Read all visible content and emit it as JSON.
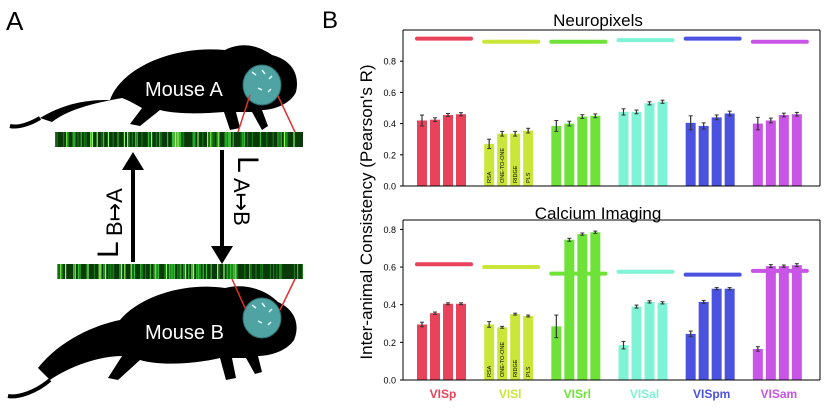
{
  "panel_a": {
    "panel_letter": "A",
    "mouse_top_label": "Mouse A",
    "mouse_bottom_label": "Mouse B",
    "transform_left": "L",
    "transform_left_sub": "B↦A",
    "transform_right": "L",
    "transform_right_sub": "A↦B"
  },
  "panel_b": {
    "panel_letter": "B",
    "ylabel": "Inter-animal Consistency (Pearson's R)",
    "method_labels": [
      "RSA",
      "ONE-TO-ONE",
      "RIDGE",
      "PLS"
    ]
  },
  "colors": {
    "VISp": "#e8435a",
    "VISl": "#cbe63a",
    "VISrl": "#6fe23a",
    "VISal": "#7ff3d6",
    "VISpm": "#4b52e0",
    "VISam": "#c855e6",
    "mouse": "#000000",
    "head_cap": "#4fa3a3"
  },
  "chart_data": [
    {
      "type": "bar",
      "title": "Neuropixels",
      "ylim": [
        0,
        1.0
      ],
      "yticks": [
        "0.0",
        "0.2",
        "0.4",
        "0.6",
        "0.8"
      ],
      "ytick_values": [
        0,
        0.2,
        0.4,
        0.6,
        0.8
      ],
      "categories": [
        "VISp",
        "VISl",
        "VISrl",
        "VISal",
        "VISpm",
        "VISam"
      ],
      "methods": [
        "RSA",
        "ONE-TO-ONE",
        "RIDGE",
        "PLS"
      ],
      "values": [
        [
          0.42,
          0.425,
          0.455,
          0.46
        ],
        [
          0.27,
          0.335,
          0.335,
          0.355
        ],
        [
          0.385,
          0.4,
          0.445,
          0.45
        ],
        [
          0.475,
          0.475,
          0.53,
          0.54
        ],
        [
          0.405,
          0.385,
          0.44,
          0.465
        ],
        [
          0.4,
          0.42,
          0.455,
          0.46
        ]
      ],
      "errors": [
        [
          0.035,
          0.012,
          0.01,
          0.01
        ],
        [
          0.03,
          0.015,
          0.015,
          0.015
        ],
        [
          0.035,
          0.015,
          0.012,
          0.012
        ],
        [
          0.02,
          0.012,
          0.01,
          0.01
        ],
        [
          0.045,
          0.02,
          0.015,
          0.015
        ],
        [
          0.04,
          0.015,
          0.012,
          0.012
        ]
      ],
      "ceilings": [
        0.945,
        0.925,
        0.925,
        0.935,
        0.945,
        0.925
      ]
    },
    {
      "type": "bar",
      "title": "Calcium Imaging",
      "ylim": [
        0,
        0.85
      ],
      "yticks": [
        "0.0",
        "0.2",
        "0.4",
        "0.6",
        "0.8"
      ],
      "ytick_values": [
        0,
        0.2,
        0.4,
        0.6,
        0.8
      ],
      "categories": [
        "VISp",
        "VISl",
        "VISrl",
        "VISal",
        "VISpm",
        "VISam"
      ],
      "methods": [
        "RSA",
        "ONE-TO-ONE",
        "RIDGE",
        "PLS"
      ],
      "values": [
        [
          0.295,
          0.355,
          0.405,
          0.405
        ],
        [
          0.295,
          0.28,
          0.35,
          0.34
        ],
        [
          0.285,
          0.745,
          0.775,
          0.785
        ],
        [
          0.185,
          0.39,
          0.415,
          0.41
        ],
        [
          0.245,
          0.415,
          0.485,
          0.485
        ],
        [
          0.165,
          0.605,
          0.605,
          0.61
        ]
      ],
      "errors": [
        [
          0.012,
          0.006,
          0.005,
          0.005
        ],
        [
          0.015,
          0.005,
          0.005,
          0.005
        ],
        [
          0.06,
          0.008,
          0.006,
          0.006
        ],
        [
          0.02,
          0.008,
          0.006,
          0.006
        ],
        [
          0.015,
          0.008,
          0.006,
          0.006
        ],
        [
          0.012,
          0.008,
          0.006,
          0.008
        ]
      ],
      "ceilings": [
        0.615,
        0.6,
        0.565,
        0.575,
        0.56,
        0.58
      ]
    }
  ]
}
